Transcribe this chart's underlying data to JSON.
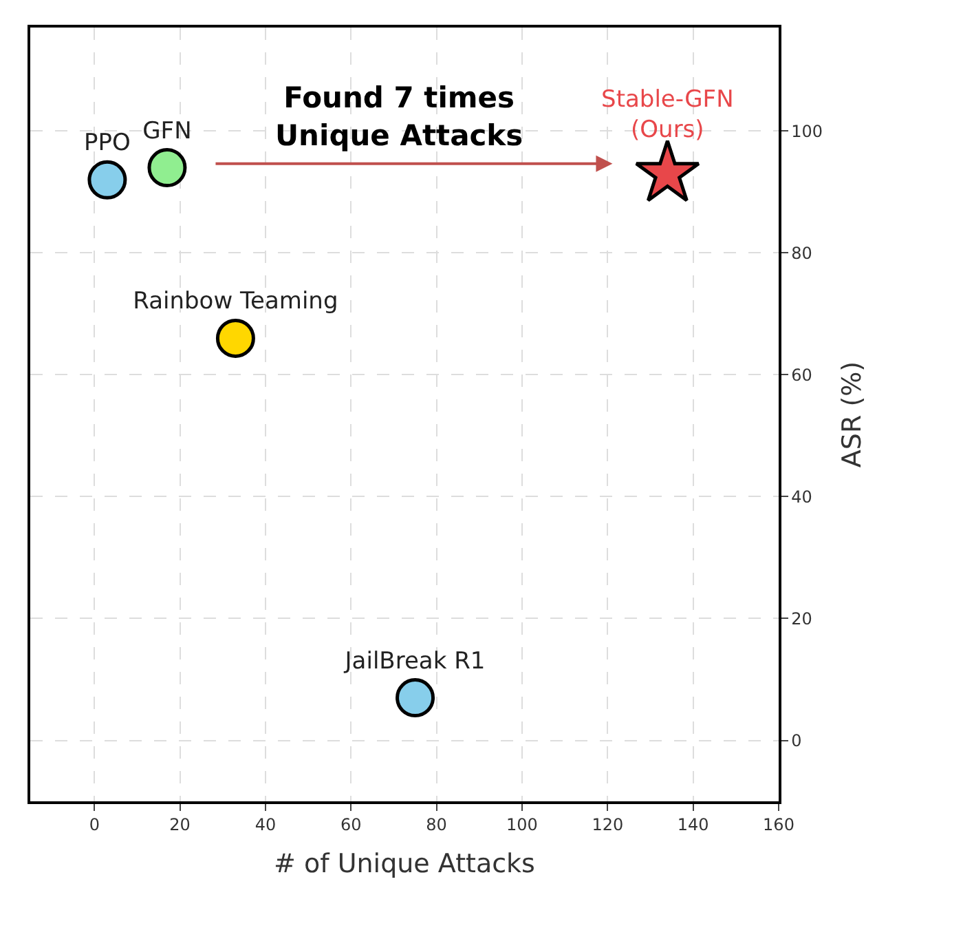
{
  "chart_data": {
    "type": "scatter",
    "xlabel": "# of Unique Attacks",
    "ylabel": "ASR (%)",
    "xlim": [
      -15,
      160
    ],
    "xticks": [
      0,
      20,
      40,
      60,
      80,
      100,
      120,
      140,
      160
    ],
    "ylim": [
      -10,
      117
    ],
    "yticks": [
      0,
      20,
      40,
      60,
      80,
      100
    ],
    "grid": true,
    "legend": false,
    "marker": "circle",
    "series": [
      {
        "name": "PPO",
        "color": "#87ceeb",
        "x": [
          3
        ],
        "values": [
          92
        ]
      },
      {
        "name": "GFN",
        "color": "#90ee90",
        "x": [
          17
        ],
        "values": [
          94
        ]
      },
      {
        "name": "Rainbow Teaming",
        "color": "#ffd700",
        "x": [
          33
        ],
        "values": [
          66
        ]
      },
      {
        "name": "JailBreak R1",
        "color": "#87ceeb",
        "x": [
          75
        ],
        "values": [
          7
        ]
      },
      {
        "name": "Stable-GFN\n(Ours)",
        "color": "#e8474a",
        "x": [
          134
        ],
        "values": [
          93
        ],
        "marker": "star"
      }
    ],
    "annotations": [
      "Found 7 times\nUnique Attacks"
    ]
  }
}
